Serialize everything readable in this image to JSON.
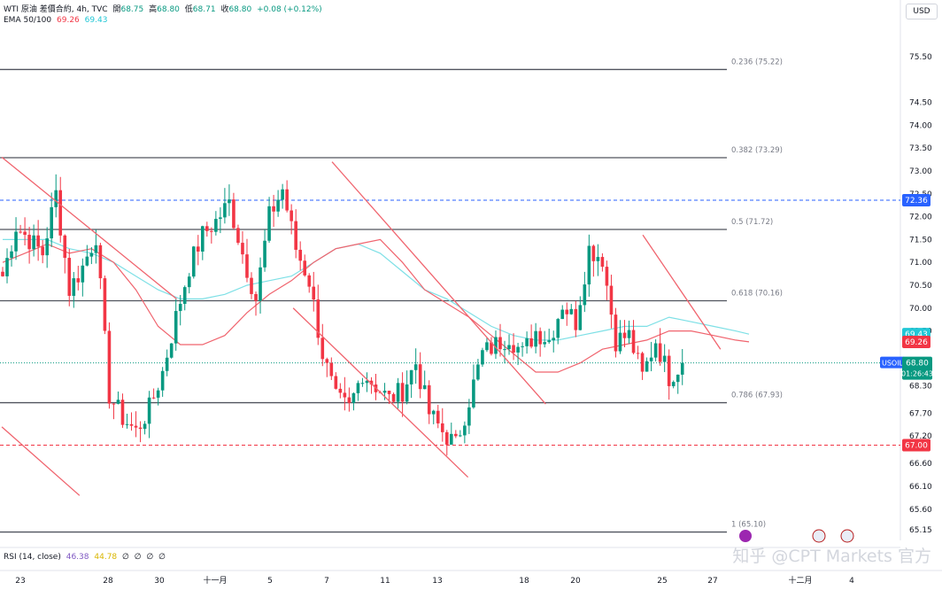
{
  "header": {
    "symbol_line": "WTI 原油 差價合約, 4h, TVC",
    "open_label": "開",
    "open_value": "68.75",
    "high_label": "高",
    "high_value": "68.80",
    "low_label": "低",
    "low_value": "68.71",
    "close_label": "收",
    "close_value": "68.80",
    "change": "+0.08 (+0.12%)",
    "ema_label": "EMA 50/100",
    "ema50_value": "69.26",
    "ema100_value": "69.43",
    "rsi_label": "RSI (14, close)",
    "rsi_value": "46.38",
    "rsi_ma_value": "44.78",
    "rsi_extras": [
      "∅",
      "∅",
      "∅",
      "∅"
    ]
  },
  "currency": "USD",
  "watermark": "知乎 @CPT Markets 官方",
  "colors": {
    "up": "#089981",
    "down": "#f23645",
    "ema50": "#f0646e",
    "ema100": "#7ee0e6",
    "trendline": "#f0646e",
    "fib_line": "#50535e",
    "blue_dashed": "#2962ff",
    "red_dashed": "#f23645",
    "price_label": "#2962ff"
  },
  "chart_data": {
    "type": "candlestick",
    "symbol": "USOIL",
    "timeframe": "4h",
    "y_ticks": [
      75.5,
      74.5,
      74.0,
      73.5,
      73.0,
      72.5,
      72.0,
      71.5,
      71.0,
      70.5,
      70.0,
      69.5,
      68.3,
      67.7,
      67.2,
      66.6,
      66.1,
      65.6,
      65.15
    ],
    "x_labels": [
      "23",
      "28",
      "30",
      "十一月",
      "5",
      "7",
      "11",
      "13",
      "18",
      "20",
      "25",
      "27",
      "十二月",
      "4"
    ],
    "fib_levels": [
      {
        "label": "0.236 (75.22)",
        "value": 75.22
      },
      {
        "label": "0.382 (73.29)",
        "value": 73.29
      },
      {
        "label": "0.5 (71.72)",
        "value": 71.72
      },
      {
        "label": "0.618 (70.16)",
        "value": 70.16
      },
      {
        "label": "0.786 (67.93)",
        "value": 67.93
      },
      {
        "label": "1 (65.10)",
        "value": 65.1
      }
    ],
    "horizontal_levels": [
      {
        "label": "72.36",
        "value": 72.36,
        "style": "dashed-blue"
      },
      {
        "label": "67.00",
        "value": 67.0,
        "style": "dashed-red"
      }
    ],
    "price_tags": [
      {
        "label": "69.43",
        "value": 69.43,
        "series": "EMA 100"
      },
      {
        "label": "69.26",
        "value": 69.26,
        "series": "EMA 50"
      }
    ],
    "last_price": {
      "symbol": "USOIL",
      "price": "68.80",
      "countdown": "01:26:43",
      "value": 68.8
    },
    "trendlines": [
      {
        "from": [
          "2024-10-22",
          73.3
        ],
        "to": [
          "2024-10-31",
          70.2
        ]
      },
      {
        "from": [
          "2024-10-22",
          67.4
        ],
        "to": [
          "2024-10-26",
          65.9
        ]
      },
      {
        "from": [
          "2024-11-08",
          73.2
        ],
        "to": [
          "2024-11-19",
          67.9
        ]
      },
      {
        "from": [
          "2024-11-06",
          70.0
        ],
        "to": [
          "2024-11-15",
          66.3
        ]
      },
      {
        "from": [
          "2024-11-24",
          71.6
        ],
        "to": [
          "2024-11-28",
          69.1
        ]
      }
    ],
    "ema50_points": [
      [
        0,
        71.0
      ],
      [
        10,
        71.2
      ],
      [
        20,
        71.4
      ],
      [
        30,
        71.2
      ],
      [
        40,
        71.3
      ],
      [
        50,
        71.0
      ],
      [
        60,
        70.4
      ],
      [
        70,
        69.6
      ],
      [
        80,
        69.2
      ],
      [
        90,
        69.2
      ],
      [
        100,
        69.4
      ],
      [
        110,
        69.9
      ],
      [
        120,
        70.3
      ],
      [
        130,
        70.6
      ],
      [
        140,
        71.0
      ],
      [
        150,
        71.3
      ],
      [
        160,
        71.4
      ],
      [
        170,
        71.5
      ],
      [
        180,
        71.0
      ],
      [
        190,
        70.4
      ],
      [
        200,
        70.1
      ],
      [
        210,
        69.8
      ],
      [
        220,
        69.4
      ],
      [
        230,
        69.0
      ],
      [
        240,
        68.6
      ],
      [
        250,
        68.6
      ],
      [
        260,
        68.8
      ],
      [
        270,
        69.1
      ],
      [
        280,
        69.2
      ],
      [
        290,
        69.3
      ],
      [
        300,
        69.5
      ],
      [
        310,
        69.5
      ],
      [
        320,
        69.4
      ],
      [
        330,
        69.3
      ],
      [
        336,
        69.26
      ]
    ],
    "ema100_points": [
      [
        0,
        71.5
      ],
      [
        10,
        71.5
      ],
      [
        20,
        71.5
      ],
      [
        30,
        71.3
      ],
      [
        40,
        71.2
      ],
      [
        50,
        71.0
      ],
      [
        60,
        70.7
      ],
      [
        70,
        70.4
      ],
      [
        80,
        70.2
      ],
      [
        90,
        70.2
      ],
      [
        100,
        70.3
      ],
      [
        110,
        70.5
      ],
      [
        120,
        70.6
      ],
      [
        130,
        70.7
      ],
      [
        140,
        71.0
      ],
      [
        150,
        71.3
      ],
      [
        160,
        71.4
      ],
      [
        170,
        71.2
      ],
      [
        180,
        70.8
      ],
      [
        190,
        70.4
      ],
      [
        200,
        70.2
      ],
      [
        210,
        69.9
      ],
      [
        220,
        69.6
      ],
      [
        230,
        69.4
      ],
      [
        240,
        69.3
      ],
      [
        250,
        69.3
      ],
      [
        260,
        69.4
      ],
      [
        270,
        69.5
      ],
      [
        280,
        69.6
      ],
      [
        290,
        69.6
      ],
      [
        300,
        69.8
      ],
      [
        310,
        69.7
      ],
      [
        320,
        69.6
      ],
      [
        330,
        69.5
      ],
      [
        336,
        69.43
      ]
    ],
    "close_points": [
      [
        0,
        70.7
      ],
      [
        6,
        71.8
      ],
      [
        12,
        71.5
      ],
      [
        18,
        71.2
      ],
      [
        24,
        72.5
      ],
      [
        30,
        70.4
      ],
      [
        36,
        70.9
      ],
      [
        42,
        71.6
      ],
      [
        48,
        68.1
      ],
      [
        54,
        67.6
      ],
      [
        60,
        67.3
      ],
      [
        66,
        67.8
      ],
      [
        72,
        68.6
      ],
      [
        78,
        69.8
      ],
      [
        84,
        70.9
      ],
      [
        90,
        71.6
      ],
      [
        96,
        71.9
      ],
      [
        102,
        72.3
      ],
      [
        108,
        71.2
      ],
      [
        114,
        70.2
      ],
      [
        120,
        72.0
      ],
      [
        126,
        72.6
      ],
      [
        132,
        71.3
      ],
      [
        138,
        70.6
      ],
      [
        144,
        69.0
      ],
      [
        150,
        68.0
      ],
      [
        156,
        67.8
      ],
      [
        162,
        68.6
      ],
      [
        168,
        68.3
      ],
      [
        174,
        68.0
      ],
      [
        180,
        68.2
      ],
      [
        186,
        68.8
      ],
      [
        192,
        67.7
      ],
      [
        198,
        67.3
      ],
      [
        204,
        67.0
      ],
      [
        210,
        68.0
      ],
      [
        216,
        69.0
      ],
      [
        222,
        69.2
      ],
      [
        228,
        69.4
      ],
      [
        234,
        69.0
      ],
      [
        240,
        69.5
      ],
      [
        246,
        69.3
      ],
      [
        252,
        70.1
      ],
      [
        258,
        69.7
      ],
      [
        264,
        71.3
      ],
      [
        270,
        71.1
      ],
      [
        276,
        69.3
      ],
      [
        282,
        69.4
      ],
      [
        288,
        68.5
      ],
      [
        294,
        69.3
      ],
      [
        300,
        68.5
      ],
      [
        306,
        68.8
      ]
    ]
  }
}
